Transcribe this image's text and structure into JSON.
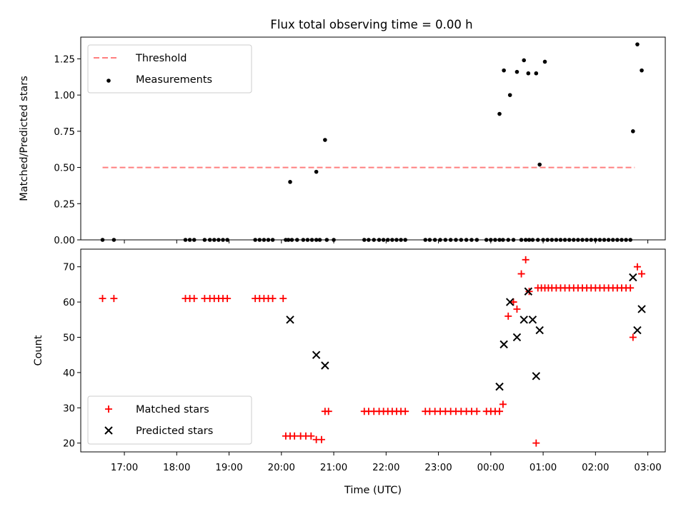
{
  "title": "Flux total observing time = 0.00 h",
  "colors": {
    "threshold": "#ff7f7f",
    "measurements": "#000000",
    "matched": "#ff0000",
    "predicted": "#000000"
  },
  "chart_data": [
    {
      "type": "scatter",
      "ylabel": "Matched/Predicted stars",
      "xlabel": "",
      "ylim": [
        0,
        1.4
      ],
      "yticks": [
        "0.00",
        "0.25",
        "0.50",
        "0.75",
        "1.00",
        "1.25"
      ],
      "legend_position": "top-left",
      "series": [
        {
          "name": "Threshold",
          "kind": "dashed-line",
          "x": [
            "16:35",
            "02:45"
          ],
          "y": [
            0.5,
            0.5
          ]
        },
        {
          "name": "Measurements",
          "kind": "dots",
          "x": [
            "16:35",
            "16:48",
            "18:10",
            "18:15",
            "18:20",
            "18:32",
            "18:38",
            "18:43",
            "18:48",
            "18:53",
            "18:58",
            "19:30",
            "19:35",
            "19:40",
            "19:45",
            "19:50",
            "20:05",
            "20:08",
            "20:12",
            "20:18",
            "20:25",
            "20:30",
            "20:35",
            "20:40",
            "20:44",
            "20:52",
            "21:00",
            "21:35",
            "21:40",
            "21:46",
            "21:52",
            "21:57",
            "22:02",
            "22:07",
            "22:12",
            "22:17",
            "22:22",
            "22:45",
            "22:50",
            "22:56",
            "23:02",
            "23:08",
            "23:14",
            "23:20",
            "23:26",
            "23:32",
            "23:38",
            "23:44",
            "23:55",
            "00:00",
            "00:05",
            "00:10",
            "00:14",
            "00:20",
            "00:26",
            "00:35",
            "00:40",
            "00:44",
            "00:48",
            "00:54",
            "01:00",
            "01:05",
            "01:10",
            "01:15",
            "01:20",
            "01:25",
            "01:30",
            "01:35",
            "01:40",
            "01:45",
            "01:50",
            "01:55",
            "02:00",
            "02:05",
            "02:10",
            "02:15",
            "02:20",
            "02:25",
            "02:30",
            "02:35",
            "02:40",
            "20:10",
            "20:40",
            "20:50",
            "00:10",
            "00:15",
            "00:22",
            "00:30",
            "00:38",
            "00:43",
            "00:52",
            "00:56",
            "01:02",
            "02:43",
            "02:48",
            "02:53"
          ],
          "y": [
            0,
            0,
            0,
            0,
            0,
            0,
            0,
            0,
            0,
            0,
            0,
            0,
            0,
            0,
            0,
            0,
            0,
            0,
            0,
            0,
            0,
            0,
            0,
            0,
            0,
            0,
            0,
            0,
            0,
            0,
            0,
            0,
            0,
            0,
            0,
            0,
            0,
            0,
            0,
            0,
            0,
            0,
            0,
            0,
            0,
            0,
            0,
            0,
            0,
            0,
            0,
            0,
            0,
            0,
            0,
            0,
            0,
            0,
            0,
            0,
            0,
            0,
            0,
            0,
            0,
            0,
            0,
            0,
            0,
            0,
            0,
            0,
            0,
            0,
            0,
            0,
            0,
            0,
            0,
            0,
            0,
            0.4,
            0.47,
            0.69,
            0.87,
            1.17,
            1.0,
            1.16,
            1.24,
            1.15,
            1.15,
            0.52,
            1.23,
            0.75,
            1.35,
            1.17
          ]
        }
      ]
    },
    {
      "type": "scatter",
      "ylabel": "Count",
      "xlabel": "Time (UTC)",
      "ylim": [
        17.5,
        75
      ],
      "yticks": [
        "20",
        "30",
        "40",
        "50",
        "60",
        "70"
      ],
      "xticks": [
        "17:00",
        "18:00",
        "19:00",
        "20:00",
        "21:00",
        "22:00",
        "23:00",
        "00:00",
        "01:00",
        "02:00",
        "03:00"
      ],
      "legend_position": "bottom-left",
      "series": [
        {
          "name": "Matched stars",
          "kind": "plus",
          "x": [
            "16:35",
            "16:48",
            "18:10",
            "18:15",
            "18:20",
            "18:32",
            "18:38",
            "18:43",
            "18:48",
            "18:53",
            "18:58",
            "19:30",
            "19:35",
            "19:40",
            "19:45",
            "19:50",
            "20:02",
            "20:05",
            "20:10",
            "20:15",
            "20:22",
            "20:28",
            "20:34",
            "20:40",
            "20:46",
            "20:50",
            "20:54",
            "21:35",
            "21:40",
            "21:46",
            "21:52",
            "21:57",
            "22:02",
            "22:07",
            "22:12",
            "22:17",
            "22:22",
            "22:45",
            "22:50",
            "22:56",
            "23:02",
            "23:08",
            "23:14",
            "23:20",
            "23:26",
            "23:32",
            "23:38",
            "23:44",
            "23:55",
            "00:00",
            "00:05",
            "00:10",
            "00:14",
            "00:20",
            "00:26",
            "00:30",
            "00:35",
            "00:40",
            "00:44",
            "00:52",
            "00:54",
            "00:58",
            "01:02",
            "01:06",
            "01:10",
            "01:15",
            "01:20",
            "01:25",
            "01:30",
            "01:35",
            "01:40",
            "01:45",
            "01:50",
            "01:55",
            "02:00",
            "02:05",
            "02:10",
            "02:15",
            "02:20",
            "02:25",
            "02:30",
            "02:35",
            "02:40",
            "02:43",
            "02:48",
            "02:53"
          ],
          "y": [
            61,
            61,
            61,
            61,
            61,
            61,
            61,
            61,
            61,
            61,
            61,
            61,
            61,
            61,
            61,
            61,
            61,
            22,
            22,
            22,
            22,
            22,
            22,
            21,
            21,
            29,
            29,
            29,
            29,
            29,
            29,
            29,
            29,
            29,
            29,
            29,
            29,
            29,
            29,
            29,
            29,
            29,
            29,
            29,
            29,
            29,
            29,
            29,
            29,
            29,
            29,
            29,
            31,
            56,
            60,
            58,
            68,
            72,
            63,
            20,
            64,
            64,
            64,
            64,
            64,
            64,
            64,
            64,
            64,
            64,
            64,
            64,
            64,
            64,
            64,
            64,
            64,
            64,
            64,
            64,
            64,
            64,
            64,
            50,
            70,
            68
          ]
        },
        {
          "name": "Predicted stars",
          "kind": "cross",
          "x": [
            "20:10",
            "20:40",
            "20:50",
            "00:10",
            "00:15",
            "00:22",
            "00:30",
            "00:38",
            "00:43",
            "00:48",
            "00:52",
            "00:56",
            "02:43",
            "02:48",
            "02:53"
          ],
          "y": [
            55,
            45,
            42,
            36,
            48,
            60,
            50,
            55,
            63,
            55,
            39,
            52,
            67,
            52,
            58
          ]
        }
      ]
    }
  ]
}
